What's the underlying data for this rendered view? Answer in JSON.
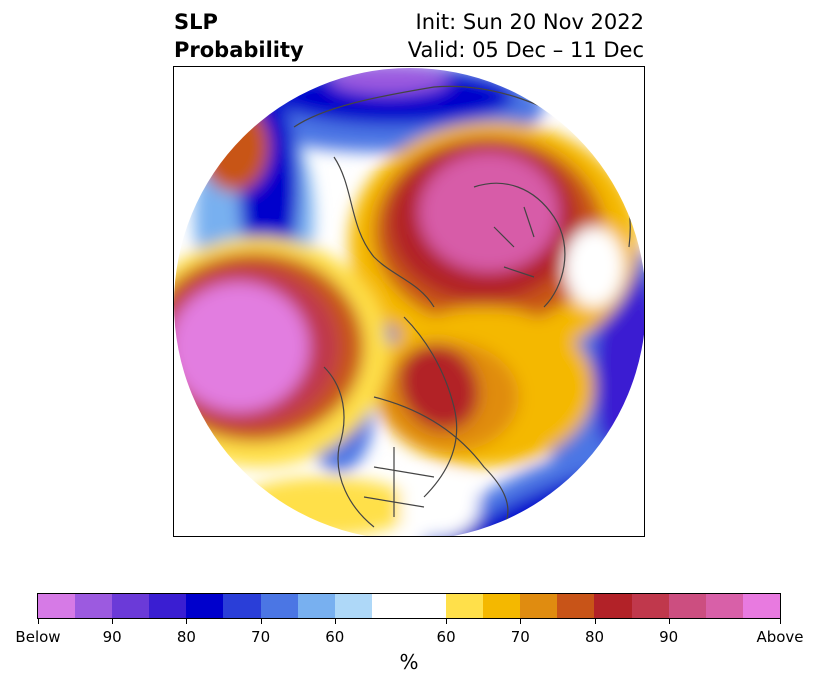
{
  "title": {
    "left_line1": "SLP",
    "left_line2": "Probability",
    "right_line1": "Init: Sun 20 Nov 2022",
    "right_line2": "Valid: 05 Dec – 11 Dec"
  },
  "map": {
    "projection": "north-polar-stereographic",
    "field": "SLP probability",
    "colors": {
      "above_max": "#e27de0",
      "above_90": "#d75ca8",
      "above_80": "#b52a2d",
      "above_70": "#e08c10",
      "above_60": "#ffe04a",
      "neutral": "#ffffff",
      "below_60": "#a8d8f8",
      "below_70": "#4b76e4",
      "below_80": "#0000cc",
      "below_90": "#6b3ad8",
      "below_max": "#d07ae8",
      "coastline": "#444444"
    }
  },
  "colorbar": {
    "swatches": [
      "#d67ae6",
      "#9c5ae0",
      "#6b3ad8",
      "#3a1ed2",
      "#0000cc",
      "#2a3ed8",
      "#4b76e4",
      "#78b0f0",
      "#aed8f8",
      "#ffffff",
      "#ffe04a",
      "#f4b800",
      "#e08c10",
      "#c85418",
      "#b22228",
      "#c0384c",
      "#cc4e80",
      "#d860a8",
      "#e87ae0"
    ],
    "widths": [
      1,
      1,
      1,
      1,
      1,
      1,
      1,
      1,
      1,
      2,
      1,
      1,
      1,
      1,
      1,
      1,
      1,
      1,
      1
    ],
    "tick_labels": [
      "Below",
      "90",
      "80",
      "70",
      "60",
      "60",
      "70",
      "80",
      "90",
      "Above"
    ],
    "label": "%"
  }
}
